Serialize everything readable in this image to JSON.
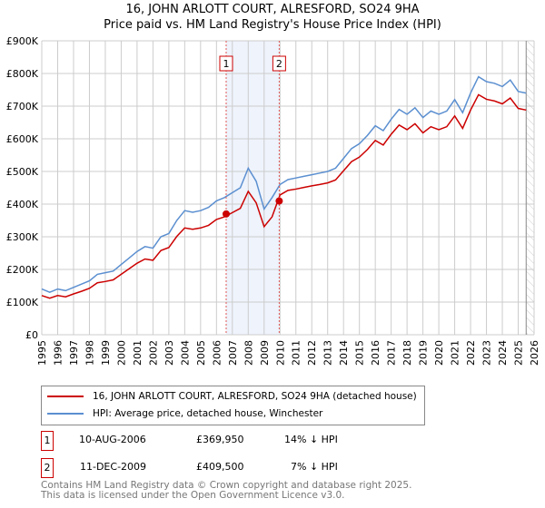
{
  "chart_data": {
    "type": "line",
    "title": "16, JOHN ARLOTT COURT, ALRESFORD, SO24 9HA",
    "subtitle": "Price paid vs. HM Land Registry's House Price Index (HPI)",
    "xlim": [
      1995,
      2026
    ],
    "ylim": [
      0,
      900000
    ],
    "x_ticks": [
      "1995",
      "1996",
      "1997",
      "1998",
      "1999",
      "2000",
      "2001",
      "2002",
      "2003",
      "2004",
      "2005",
      "2006",
      "2007",
      "2008",
      "2009",
      "2010",
      "2011",
      "2012",
      "2013",
      "2014",
      "2015",
      "2016",
      "2017",
      "2018",
      "2019",
      "2020",
      "2021",
      "2022",
      "2023",
      "2024",
      "2025",
      "2026"
    ],
    "y_ticks": [
      {
        "v": 0,
        "label": "£0"
      },
      {
        "v": 100000,
        "label": "£100K"
      },
      {
        "v": 200000,
        "label": "£200K"
      },
      {
        "v": 300000,
        "label": "£300K"
      },
      {
        "v": 400000,
        "label": "£400K"
      },
      {
        "v": 500000,
        "label": "£500K"
      },
      {
        "v": 600000,
        "label": "£600K"
      },
      {
        "v": 700000,
        "label": "£700K"
      },
      {
        "v": 800000,
        "label": "£800K"
      },
      {
        "v": 900000,
        "label": "£900K"
      }
    ],
    "grid": true,
    "x": [
      1995,
      1995.5,
      1996,
      1996.5,
      1997,
      1997.5,
      1998,
      1998.5,
      1999,
      1999.5,
      2000,
      2000.5,
      2001,
      2001.5,
      2002,
      2002.5,
      2003,
      2003.5,
      2004,
      2004.5,
      2005,
      2005.5,
      2006,
      2006.5,
      2007,
      2007.5,
      2008,
      2008.5,
      2009,
      2009.5,
      2010,
      2010.5,
      2011,
      2011.5,
      2012,
      2012.5,
      2013,
      2013.5,
      2014,
      2014.5,
      2015,
      2015.5,
      2016,
      2016.5,
      2017,
      2017.5,
      2018,
      2018.5,
      2019,
      2019.5,
      2020,
      2020.5,
      2021,
      2021.5,
      2022,
      2022.5,
      2023,
      2023.5,
      2024,
      2024.5,
      2025,
      2025.5
    ],
    "series": [
      {
        "name": "16, JOHN ARLOTT COURT, ALRESFORD, SO24 9HA (detached house)",
        "color": "#cc0000",
        "values": [
          120,
          112,
          120,
          116,
          125,
          133,
          142,
          159,
          163,
          168,
          185,
          202,
          219,
          232,
          228,
          258,
          267,
          301,
          327,
          323,
          327,
          335,
          353,
          361,
          374,
          387,
          439,
          404,
          331,
          361,
          428,
          442,
          446,
          451,
          456,
          460,
          465,
          474,
          502,
          530,
          544,
          567,
          595,
          581,
          614,
          642,
          628,
          646,
          618,
          637,
          628,
          637,
          670,
          632,
          688,
          735,
          721,
          716,
          707,
          725,
          693,
          688
        ]
      },
      {
        "name": "HPI: Average price, detached house, Winchester",
        "color": "#5b8fd0",
        "values": [
          140,
          130,
          140,
          135,
          145,
          155,
          165,
          185,
          190,
          195,
          215,
          235,
          255,
          270,
          265,
          300,
          310,
          350,
          380,
          375,
          380,
          390,
          410,
          420,
          435,
          450,
          510,
          470,
          385,
          420,
          460,
          475,
          480,
          485,
          490,
          495,
          500,
          510,
          540,
          570,
          585,
          610,
          640,
          625,
          660,
          690,
          675,
          695,
          665,
          685,
          675,
          685,
          720,
          680,
          740,
          790,
          775,
          770,
          760,
          780,
          745,
          740
        ]
      }
    ],
    "value_unit": "thousand GBP",
    "shaded_range": [
      2006.61,
      2009.95
    ],
    "forecast_hatch_from": 2025.5,
    "sales": [
      {
        "id": "1",
        "date": "10-AUG-2006",
        "x": 2006.61,
        "price": "£369,950",
        "value": 369950,
        "hpi": "14% ↓ HPI"
      },
      {
        "id": "2",
        "date": "11-DEC-2009",
        "x": 2009.95,
        "price": "£409,500",
        "value": 409500,
        "hpi": "7% ↓ HPI"
      }
    ],
    "legend_position": "bottom"
  },
  "footer": [
    "Contains HM Land Registry data © Crown copyright and database right 2025.",
    "This data is licensed under the Open Government Licence v3.0."
  ]
}
